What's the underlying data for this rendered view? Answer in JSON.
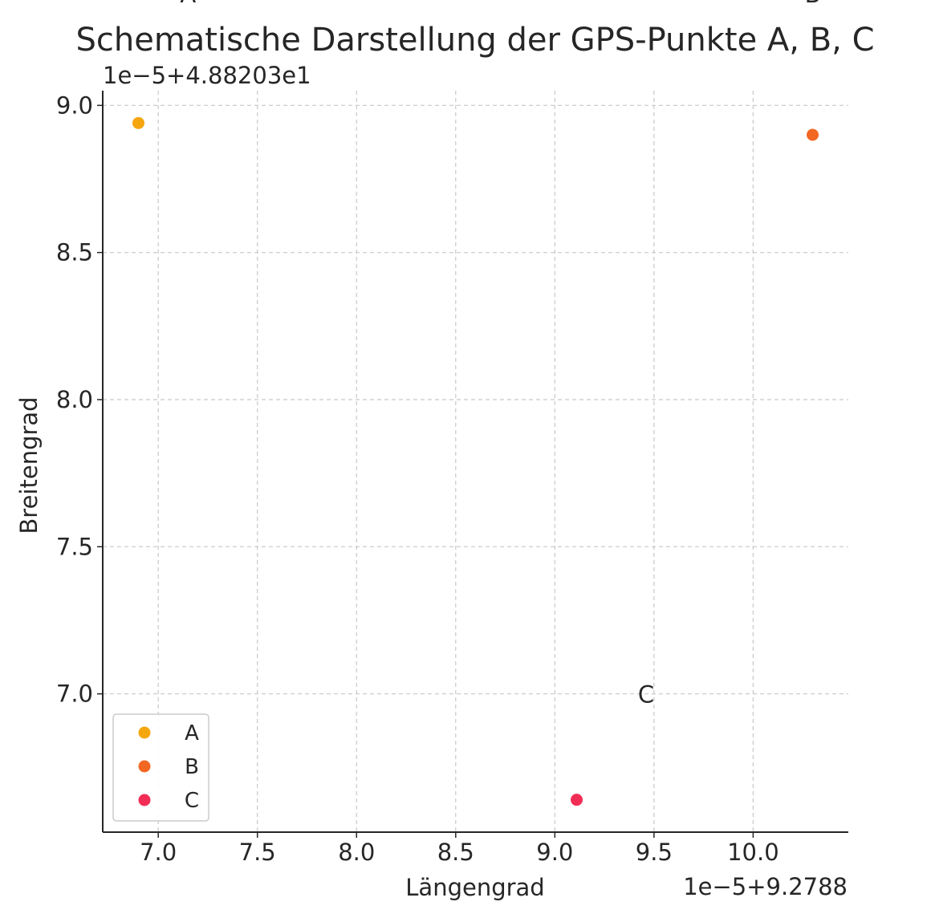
{
  "chart_data": {
    "type": "scatter",
    "title": "Schematische Darstellung der GPS-Punkte A, B, C",
    "xlabel": "Längengrad",
    "ylabel": "Breitengrad",
    "x_offset_label": "1e−5+9.2788",
    "y_offset_label": "1e−5+4.88203e1",
    "xlim": [
      6.72,
      10.48
    ],
    "ylim": [
      6.53,
      9.05
    ],
    "x_ticks": [
      "7.0",
      "7.5",
      "8.0",
      "8.5",
      "9.0",
      "9.5",
      "10.0"
    ],
    "x_tick_values": [
      7.0,
      7.5,
      8.0,
      8.5,
      9.0,
      9.5,
      10.0
    ],
    "y_ticks": [
      "7.0",
      "7.5",
      "8.0",
      "8.5",
      "9.0"
    ],
    "y_tick_values": [
      7.0,
      7.5,
      8.0,
      8.5,
      9.0
    ],
    "grid": true,
    "legend_position": "lower-left",
    "series": [
      {
        "name": "A",
        "color": "#f5a60f",
        "x": [
          6.9
        ],
        "y": [
          8.94
        ]
      },
      {
        "name": "B",
        "color": "#f26722",
        "x": [
          10.3
        ],
        "y": [
          8.9
        ]
      },
      {
        "name": "C",
        "color": "#f22d55",
        "x": [
          9.11
        ],
        "y": [
          6.64
        ]
      }
    ],
    "annotations": [
      {
        "text": "A",
        "x": 7.15,
        "y": 9.35
      },
      {
        "text": "B",
        "x": 10.3,
        "y": 9.35
      },
      {
        "text": "C",
        "x": 9.46,
        "y": 6.97
      }
    ]
  }
}
